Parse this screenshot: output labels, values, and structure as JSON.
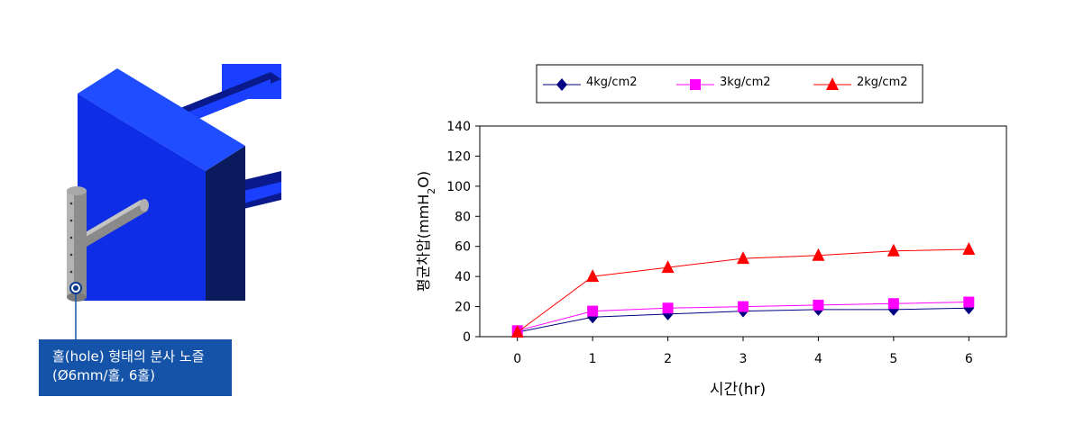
{
  "callout": {
    "line1": "홀(hole) 형태의 분사 노즐",
    "line2": "(Ø6mm/홀, 6홀)"
  },
  "chart_data": {
    "type": "line",
    "x": [
      0,
      1,
      2,
      3,
      4,
      5,
      6
    ],
    "xlabel": "시간(hr)",
    "ylabel": "평균차압(mmH2O)",
    "ylim": [
      0,
      140
    ],
    "yticks": [
      0,
      20,
      40,
      60,
      80,
      100,
      120,
      140
    ],
    "grid": false,
    "legend_position": "top",
    "series": [
      {
        "name": "4kg/cm2",
        "marker": "diamond",
        "color": "#000080",
        "values": [
          3,
          13,
          15,
          17,
          18,
          18,
          19
        ]
      },
      {
        "name": "3kg/cm2",
        "marker": "square",
        "color": "#ff00ff",
        "values": [
          4,
          17,
          19,
          20,
          21,
          22,
          23
        ]
      },
      {
        "name": "2kg/cm2",
        "marker": "triangle",
        "color": "#ff0000",
        "values": [
          3,
          40,
          46,
          52,
          54,
          57,
          58
        ]
      }
    ]
  }
}
